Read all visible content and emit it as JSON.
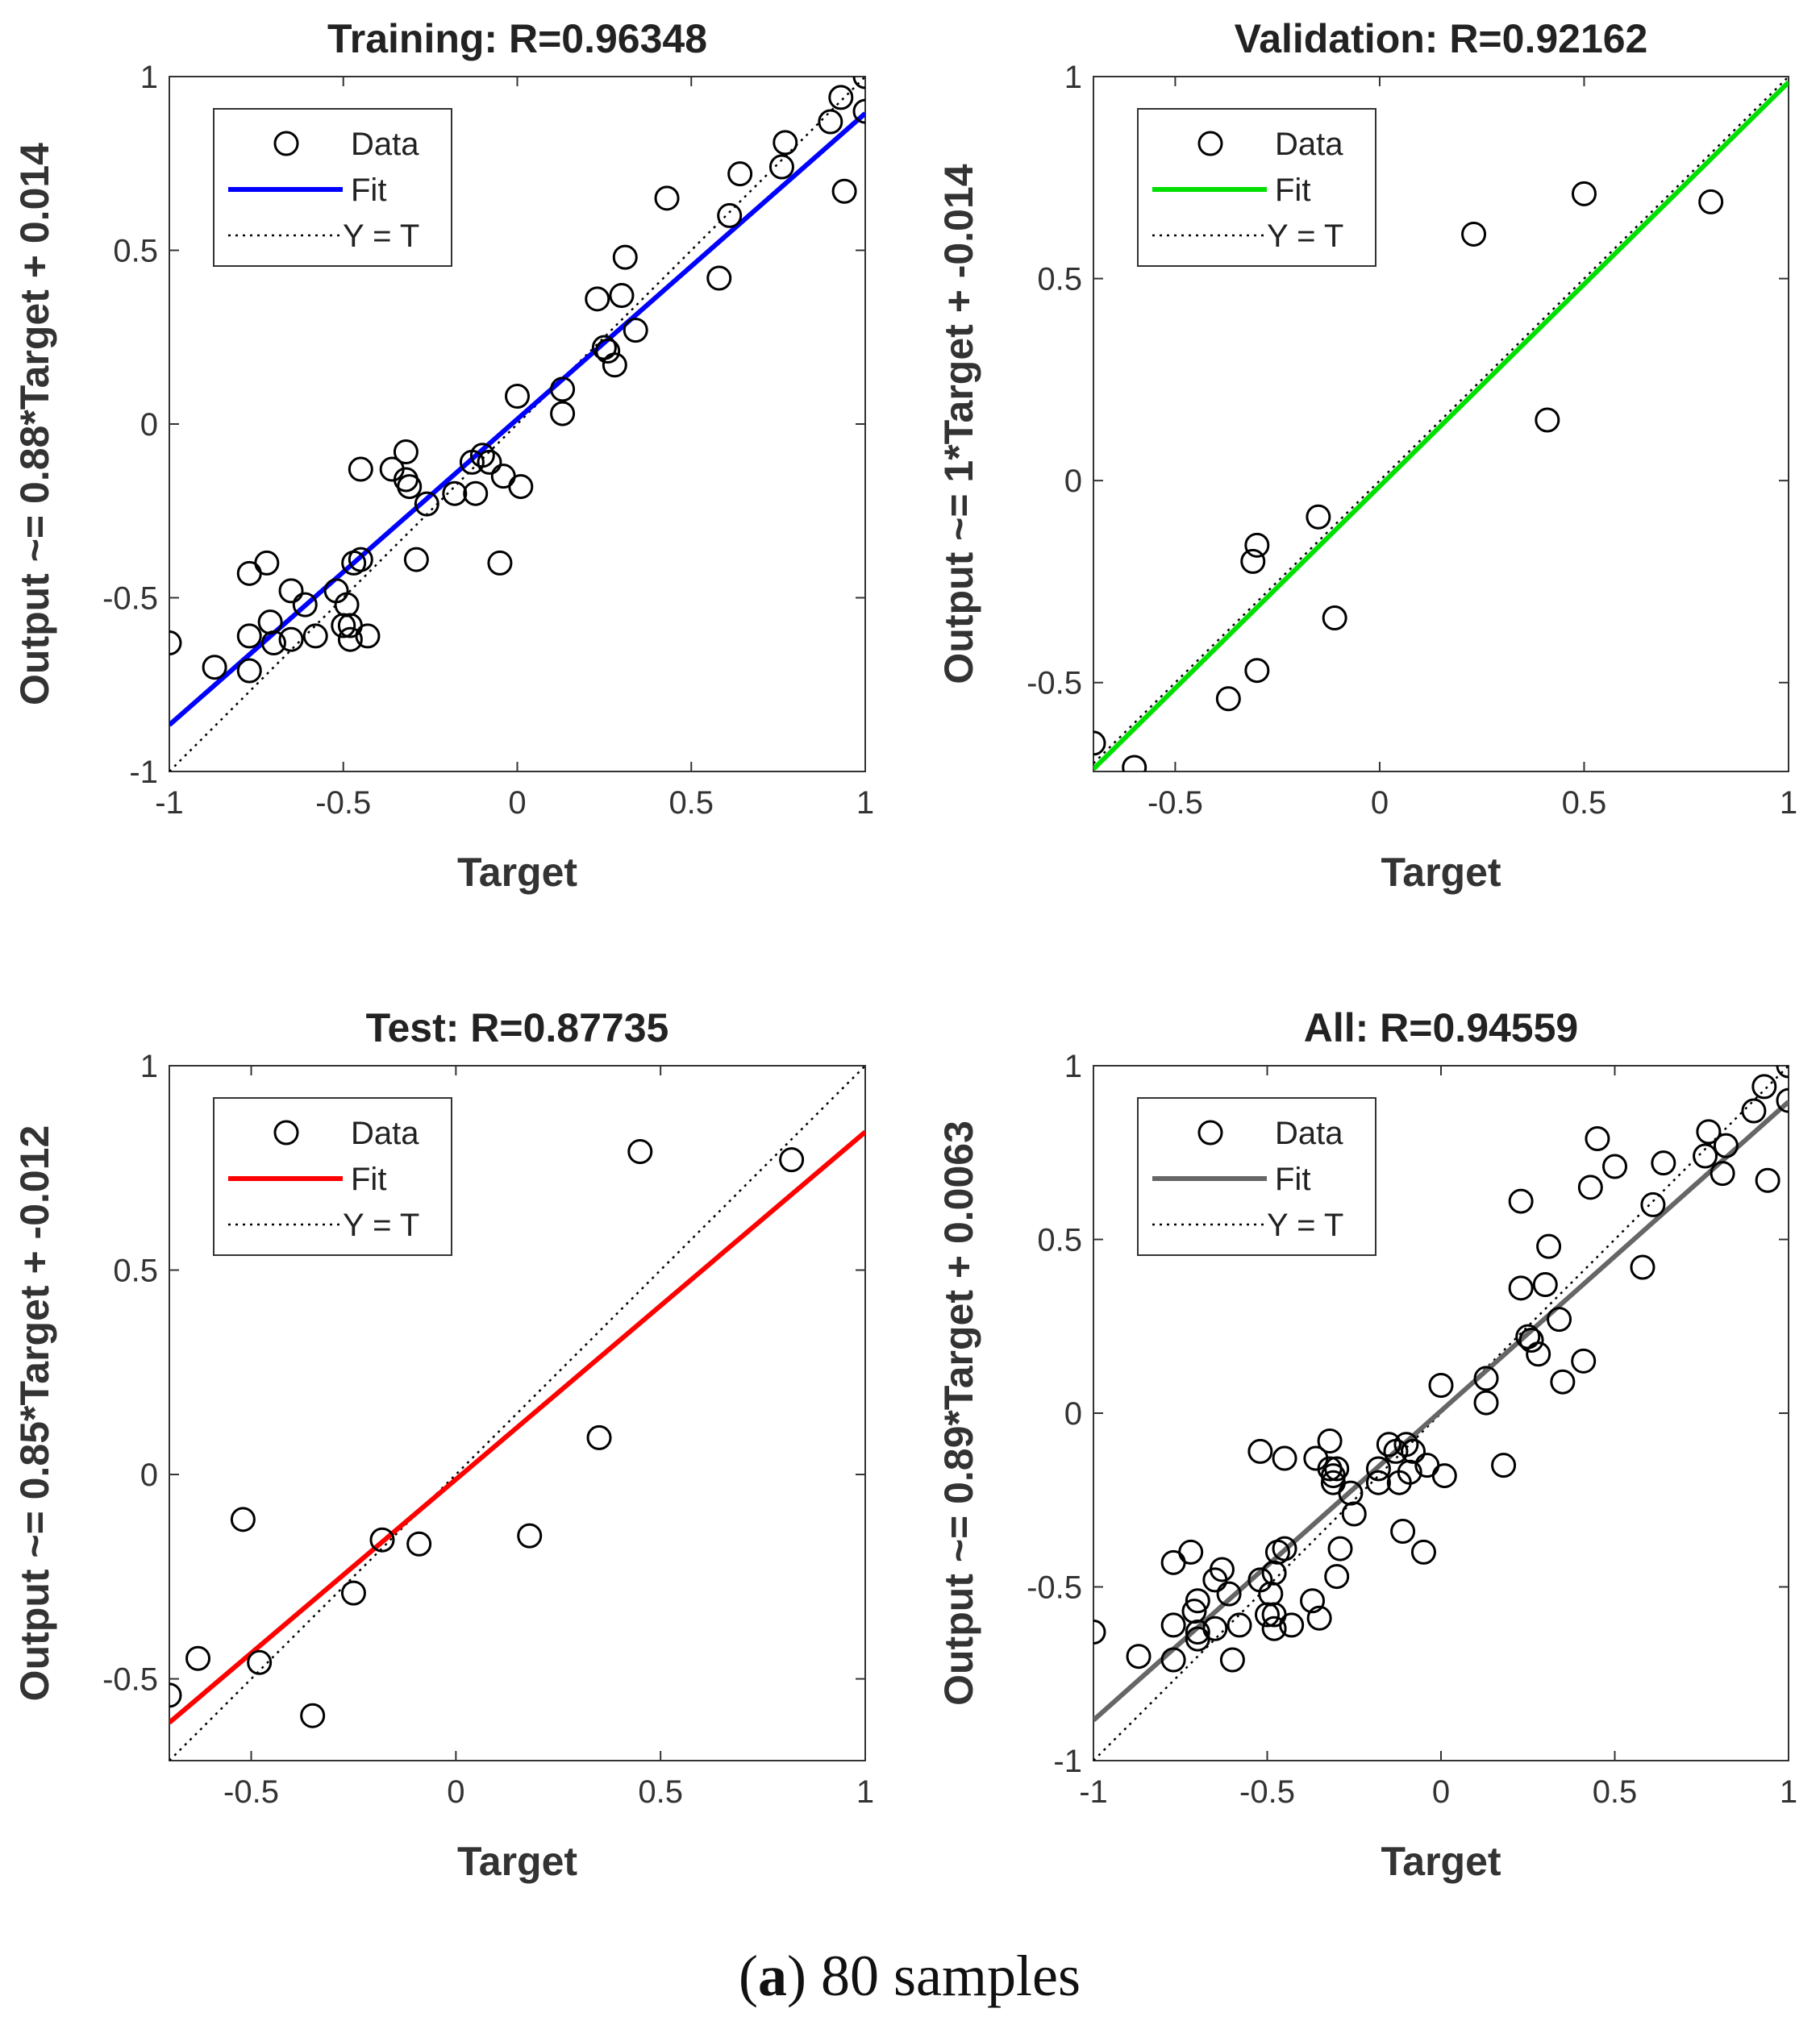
{
  "caption": {
    "letter": "a",
    "text": " 80 samples",
    "open": "(",
    "close": ")"
  },
  "legend_labels": {
    "data": "Data",
    "fit": "Fit",
    "yt": "Y = T"
  },
  "chart_data": [
    {
      "id": "training",
      "type": "scatter",
      "title": "Training: R=0.96348",
      "xlabel": "Target",
      "ylabel": "Output ~= 0.88*Target + 0.014",
      "xlim": [
        -1,
        1
      ],
      "ylim": [
        -1,
        1
      ],
      "xticks": [
        "-1",
        "-0.5",
        "0",
        "0.5",
        "1"
      ],
      "yticks": [
        "-1",
        "-0.5",
        "0",
        "0.5",
        "1"
      ],
      "fit": {
        "slope": 0.88,
        "intercept": 0.014,
        "color": "#0000ff"
      },
      "legend": [
        "Data",
        "Fit",
        "Y = T"
      ],
      "points": [
        [
          -1.0,
          -0.63
        ],
        [
          -0.87,
          -0.7
        ],
        [
          -0.77,
          -0.43
        ],
        [
          -0.72,
          -0.4
        ],
        [
          -0.77,
          -0.61
        ],
        [
          -0.77,
          -0.71
        ],
        [
          -0.71,
          -0.57
        ],
        [
          -0.7,
          -0.63
        ],
        [
          -0.65,
          -0.62
        ],
        [
          -0.65,
          -0.48
        ],
        [
          -0.61,
          -0.52
        ],
        [
          -0.58,
          -0.61
        ],
        [
          -0.52,
          -0.48
        ],
        [
          -0.5,
          -0.58
        ],
        [
          -0.49,
          -0.52
        ],
        [
          -0.48,
          -0.58
        ],
        [
          -0.48,
          -0.62
        ],
        [
          -0.47,
          -0.4
        ],
        [
          -0.45,
          -0.39
        ],
        [
          -0.43,
          -0.61
        ],
        [
          -0.45,
          -0.13
        ],
        [
          -0.36,
          -0.13
        ],
        [
          -0.32,
          -0.08
        ],
        [
          -0.32,
          -0.16
        ],
        [
          -0.31,
          -0.18
        ],
        [
          -0.29,
          -0.39
        ],
        [
          -0.26,
          -0.23
        ],
        [
          -0.18,
          -0.2
        ],
        [
          -0.13,
          -0.11
        ],
        [
          -0.12,
          -0.2
        ],
        [
          -0.1,
          -0.09
        ],
        [
          -0.08,
          -0.11
        ],
        [
          -0.05,
          -0.4
        ],
        [
          -0.04,
          -0.15
        ],
        [
          0.01,
          -0.18
        ],
        [
          0.0,
          0.08
        ],
        [
          0.13,
          0.03
        ],
        [
          0.13,
          0.1
        ],
        [
          0.23,
          0.36
        ],
        [
          0.25,
          0.22
        ],
        [
          0.26,
          0.21
        ],
        [
          0.28,
          0.17
        ],
        [
          0.3,
          0.37
        ],
        [
          0.31,
          0.48
        ],
        [
          0.34,
          0.27
        ],
        [
          0.43,
          0.65
        ],
        [
          0.58,
          0.42
        ],
        [
          0.61,
          0.6
        ],
        [
          0.64,
          0.72
        ],
        [
          0.76,
          0.74
        ],
        [
          0.77,
          0.81
        ],
        [
          0.9,
          0.87
        ],
        [
          0.93,
          0.94
        ],
        [
          0.94,
          0.67
        ],
        [
          1.0,
          1.0
        ],
        [
          1.0,
          0.9
        ]
      ]
    },
    {
      "id": "validation",
      "type": "scatter",
      "title": "Validation: R=0.92162",
      "xlabel": "Target",
      "ylabel": "Output ~= 1*Target + -0.014",
      "xlim": [
        -0.7,
        1
      ],
      "ylim": [
        -0.72,
        1
      ],
      "xticks": [
        "-0.5",
        "0",
        "0.5",
        "1"
      ],
      "yticks": [
        "-0.5",
        "0",
        "0.5",
        "1"
      ],
      "fit": {
        "slope": 1.0,
        "intercept": -0.014,
        "color": "#00e000"
      },
      "legend": [
        "Data",
        "Fit",
        "Y = T"
      ],
      "points": [
        [
          -0.7,
          -0.65
        ],
        [
          -0.6,
          -0.71
        ],
        [
          -0.37,
          -0.54
        ],
        [
          -0.31,
          -0.2
        ],
        [
          -0.3,
          -0.16
        ],
        [
          -0.3,
          -0.47
        ],
        [
          -0.15,
          -0.09
        ],
        [
          -0.11,
          -0.34
        ],
        [
          0.23,
          0.61
        ],
        [
          0.41,
          0.15
        ],
        [
          0.5,
          0.71
        ],
        [
          0.81,
          0.69
        ]
      ]
    },
    {
      "id": "test",
      "type": "scatter",
      "title": "Test: R=0.87735",
      "xlabel": "Target",
      "ylabel": "Output ~= 0.85*Target + -0.012",
      "xlim": [
        -0.7,
        1
      ],
      "ylim": [
        -0.7,
        1
      ],
      "xticks": [
        "-0.5",
        "0",
        "0.5",
        "1"
      ],
      "yticks": [
        "-0.5",
        "0",
        "0.5",
        "1"
      ],
      "fit": {
        "slope": 0.85,
        "intercept": -0.012,
        "color": "#ff0000"
      },
      "legend": [
        "Data",
        "Fit",
        "Y = T"
      ],
      "points": [
        [
          -0.7,
          -0.54
        ],
        [
          -0.63,
          -0.45
        ],
        [
          -0.52,
          -0.11
        ],
        [
          -0.48,
          -0.46
        ],
        [
          -0.35,
          -0.59
        ],
        [
          -0.25,
          -0.29
        ],
        [
          -0.18,
          -0.16
        ],
        [
          -0.09,
          -0.17
        ],
        [
          0.18,
          -0.15
        ],
        [
          0.35,
          0.09
        ],
        [
          0.45,
          0.79
        ],
        [
          0.82,
          0.77
        ]
      ]
    },
    {
      "id": "all",
      "type": "scatter",
      "title": "All: R=0.94559",
      "xlabel": "Target",
      "ylabel": "Output ~= 0.89*Target + 0.0063",
      "xlim": [
        -1,
        1
      ],
      "ylim": [
        -1,
        1
      ],
      "xticks": [
        "-1",
        "-0.5",
        "0",
        "0.5",
        "1"
      ],
      "yticks": [
        "-1",
        "-0.5",
        "0",
        "0.5",
        "1"
      ],
      "fit": {
        "slope": 0.89,
        "intercept": 0.0063,
        "color": "#666666"
      },
      "legend": [
        "Data",
        "Fit",
        "Y = T"
      ],
      "points": [
        [
          -1.0,
          -0.63
        ],
        [
          -0.87,
          -0.7
        ],
        [
          -0.77,
          -0.43
        ],
        [
          -0.72,
          -0.4
        ],
        [
          -0.77,
          -0.61
        ],
        [
          -0.77,
          -0.71
        ],
        [
          -0.71,
          -0.57
        ],
        [
          -0.7,
          -0.63
        ],
        [
          -0.65,
          -0.62
        ],
        [
          -0.65,
          -0.48
        ],
        [
          -0.61,
          -0.52
        ],
        [
          -0.58,
          -0.61
        ],
        [
          -0.52,
          -0.48
        ],
        [
          -0.5,
          -0.58
        ],
        [
          -0.49,
          -0.52
        ],
        [
          -0.48,
          -0.58
        ],
        [
          -0.48,
          -0.62
        ],
        [
          -0.47,
          -0.4
        ],
        [
          -0.45,
          -0.39
        ],
        [
          -0.43,
          -0.61
        ],
        [
          -0.45,
          -0.13
        ],
        [
          -0.36,
          -0.13
        ],
        [
          -0.32,
          -0.08
        ],
        [
          -0.32,
          -0.16
        ],
        [
          -0.31,
          -0.18
        ],
        [
          -0.29,
          -0.39
        ],
        [
          -0.26,
          -0.23
        ],
        [
          -0.18,
          -0.2
        ],
        [
          -0.13,
          -0.11
        ],
        [
          -0.12,
          -0.2
        ],
        [
          -0.1,
          -0.09
        ],
        [
          -0.08,
          -0.11
        ],
        [
          -0.05,
          -0.4
        ],
        [
          -0.04,
          -0.15
        ],
        [
          0.01,
          -0.18
        ],
        [
          0.0,
          0.08
        ],
        [
          0.13,
          0.03
        ],
        [
          0.13,
          0.1
        ],
        [
          0.23,
          0.36
        ],
        [
          0.25,
          0.22
        ],
        [
          0.26,
          0.21
        ],
        [
          0.28,
          0.17
        ],
        [
          0.3,
          0.37
        ],
        [
          0.31,
          0.48
        ],
        [
          0.34,
          0.27
        ],
        [
          0.43,
          0.65
        ],
        [
          0.58,
          0.42
        ],
        [
          0.61,
          0.6
        ],
        [
          0.64,
          0.72
        ],
        [
          0.76,
          0.74
        ],
        [
          0.77,
          0.81
        ],
        [
          0.9,
          0.87
        ],
        [
          0.93,
          0.94
        ],
        [
          0.94,
          0.67
        ],
        [
          1.0,
          1.0
        ],
        [
          1.0,
          0.9
        ],
        [
          -0.7,
          -0.65
        ],
        [
          -0.6,
          -0.71
        ],
        [
          -0.37,
          -0.54
        ],
        [
          -0.31,
          -0.2
        ],
        [
          -0.3,
          -0.16
        ],
        [
          -0.3,
          -0.47
        ],
        [
          -0.15,
          -0.09
        ],
        [
          -0.11,
          -0.34
        ],
        [
          0.23,
          0.61
        ],
        [
          0.41,
          0.15
        ],
        [
          0.5,
          0.71
        ],
        [
          0.81,
          0.69
        ],
        [
          -0.7,
          -0.54
        ],
        [
          -0.63,
          -0.45
        ],
        [
          -0.52,
          -0.11
        ],
        [
          -0.48,
          -0.46
        ],
        [
          -0.35,
          -0.59
        ],
        [
          -0.25,
          -0.29
        ],
        [
          -0.18,
          -0.16
        ],
        [
          -0.09,
          -0.17
        ],
        [
          0.18,
          -0.15
        ],
        [
          0.35,
          0.09
        ],
        [
          0.45,
          0.79
        ],
        [
          0.82,
          0.77
        ]
      ]
    }
  ]
}
